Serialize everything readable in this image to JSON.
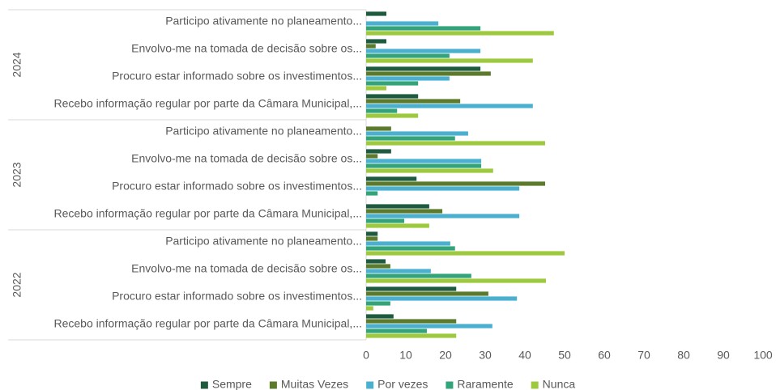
{
  "chart_data": {
    "type": "bar",
    "orientation": "horizontal",
    "groups": [
      "2024",
      "2023",
      "2022"
    ],
    "categories": [
      "Participo ativamente no planeamento...",
      "Envolvo-me na tomada de decisão sobre os...",
      "Procuro estar informado sobre os investimentos...",
      "Recebo informação regular por parte da Câmara Municipal,...",
      "Participo ativamente no planeamento...",
      "Envolvo-me na tomada de decisão sobre os...",
      "Procuro estar informado sobre os investimentos...",
      "Recebo informação regular por parte da Câmara Municipal,...",
      "Participo ativamente no planeamento...",
      "Envolvo-me na tomada de decisão sobre os...",
      "Procuro estar informado sobre os investimentos...",
      "Recebo informação regular por parte da Câmara Municipal,..."
    ],
    "series": [
      {
        "name": "Sempre",
        "color": "#1e5b3e",
        "values": [
          5.1,
          5.1,
          28.8,
          13.1,
          0,
          6.3,
          12.7,
          15.9,
          2.9,
          4.9,
          22.7,
          6.9
        ]
      },
      {
        "name": "Muitas Vezes",
        "color": "#5b7a2b",
        "values": [
          0,
          2.4,
          31.4,
          23.7,
          6.3,
          2.9,
          45.1,
          19.2,
          2.9,
          6.1,
          30.8,
          22.7
        ]
      },
      {
        "name": "Por vezes",
        "color": "#4bb0cf",
        "values": [
          18.2,
          28.8,
          21,
          42,
          25.7,
          29,
          38.6,
          38.6,
          21.2,
          16.3,
          38,
          31.8
        ]
      },
      {
        "name": "Raramente",
        "color": "#33a37a",
        "values": [
          28.8,
          21,
          13.1,
          7.8,
          22.4,
          29,
          2.9,
          9.6,
          22.4,
          26.5,
          6.1,
          15.3
        ]
      },
      {
        "name": "Nunca",
        "color": "#9dc93f",
        "values": [
          47.3,
          42,
          5.1,
          13.1,
          45.1,
          32,
          0,
          15.9,
          50,
          45.3,
          1.8,
          22.7
        ]
      }
    ],
    "xlim": [
      0,
      100
    ],
    "xticks": [
      0,
      10,
      20,
      30,
      40,
      50,
      60,
      70,
      80,
      90,
      100
    ],
    "grid": false,
    "legend": "bottom"
  }
}
